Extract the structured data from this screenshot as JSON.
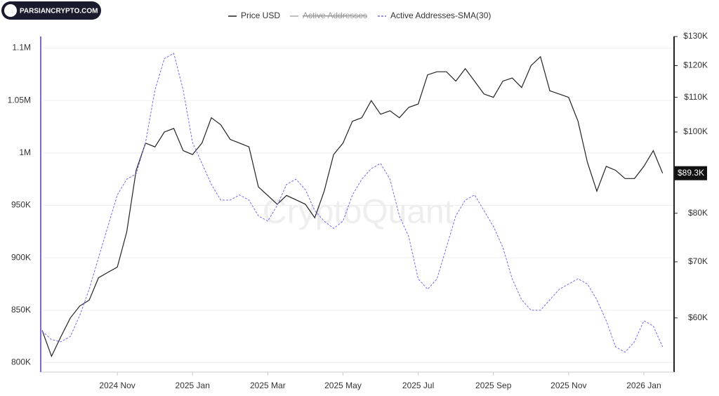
{
  "brand": "PARSIANCRYPTO.COM",
  "chart_data": {
    "type": "line",
    "watermark": "CryptoQuant",
    "categories": [
      null,
      null,
      null,
      null,
      null,
      null,
      null,
      null,
      "2024 Nov",
      null,
      null,
      null,
      null,
      null,
      null,
      null,
      "2025 Jan",
      null,
      null,
      null,
      null,
      null,
      null,
      null,
      "2025 Mar",
      null,
      null,
      null,
      null,
      null,
      null,
      null,
      "2025 May",
      null,
      null,
      null,
      null,
      null,
      null,
      null,
      "2025 Jul",
      null,
      null,
      null,
      null,
      null,
      null,
      null,
      "2025 Sep",
      null,
      null,
      null,
      null,
      null,
      null,
      null,
      "2025 Nov",
      null,
      null,
      null,
      null,
      null,
      null,
      null,
      "2026 Jan",
      null,
      null
    ],
    "series": [
      {
        "name": "Price USD",
        "color": "#222222",
        "axis": "y2",
        "dash": false,
        "visible": true,
        "values": [
          58000,
          54000,
          57000,
          60000,
          62000,
          63000,
          67000,
          68000,
          69000,
          76000,
          90000,
          97000,
          96000,
          100000,
          101000,
          95000,
          94000,
          97000,
          104000,
          102000,
          98000,
          97000,
          96000,
          86000,
          84000,
          82000,
          84000,
          83000,
          82000,
          79000,
          85000,
          94000,
          97000,
          103000,
          104000,
          109000,
          105000,
          106000,
          104000,
          107000,
          108000,
          117000,
          118000,
          118000,
          115000,
          119000,
          115000,
          111000,
          110000,
          115000,
          116000,
          113000,
          120000,
          123000,
          112000,
          111000,
          110000,
          103000,
          92000,
          85000,
          91000,
          90000,
          88000,
          88000,
          91000,
          95000,
          89300
        ],
        "value_labels": [
          null,
          null,
          null,
          null,
          null,
          null,
          null,
          null,
          null,
          null,
          null,
          null,
          null,
          null,
          null,
          null,
          null,
          null,
          null,
          null,
          null,
          null,
          null,
          null,
          null,
          null,
          null,
          null,
          null,
          null,
          null,
          null,
          null,
          null,
          null,
          null,
          null,
          null,
          null,
          null,
          null,
          null,
          null,
          null,
          null,
          null,
          null,
          null,
          null,
          null,
          null,
          null,
          null,
          null,
          null,
          null,
          null,
          null,
          null,
          null,
          null,
          null,
          null,
          null,
          null,
          null,
          "$89.3K"
        ]
      },
      {
        "name": "Active Addresses",
        "color": "#aaaaaa",
        "dash": false,
        "visible": false
      },
      {
        "name": "Active Addresses-SMA(30)",
        "color": "#7b68ee",
        "axis": "y",
        "dash": true,
        "visible": true,
        "values": [
          830000,
          822000,
          820000,
          825000,
          845000,
          870000,
          900000,
          930000,
          960000,
          975000,
          980000,
          1010000,
          1060000,
          1090000,
          1095000,
          1060000,
          1010000,
          990000,
          970000,
          955000,
          955000,
          960000,
          955000,
          940000,
          935000,
          950000,
          970000,
          975000,
          965000,
          945000,
          935000,
          928000,
          935000,
          960000,
          975000,
          985000,
          990000,
          975000,
          940000,
          920000,
          880000,
          870000,
          880000,
          910000,
          940000,
          955000,
          960000,
          945000,
          930000,
          910000,
          880000,
          860000,
          850000,
          850000,
          860000,
          870000,
          875000,
          880000,
          875000,
          860000,
          840000,
          815000,
          810000,
          820000,
          840000,
          835000,
          815000
        ]
      }
    ],
    "ylim": [
      791000,
      1111000
    ],
    "yticks": [
      {
        "value": 800000,
        "label": "800K"
      },
      {
        "value": 850000,
        "label": "850K"
      },
      {
        "value": 900000,
        "label": "900K"
      },
      {
        "value": 950000,
        "label": "950K"
      },
      {
        "value": 1000000,
        "label": "1M"
      },
      {
        "value": 1050000,
        "label": "1.05M"
      },
      {
        "value": 1100000,
        "label": "1.1M"
      }
    ],
    "y2lim": [
      51700,
      130000
    ],
    "y2scale": "log",
    "y2ticks": [
      {
        "value": 60000,
        "label": "$60K"
      },
      {
        "value": 70000,
        "label": "$70K"
      },
      {
        "value": 80000,
        "label": "$80K"
      },
      {
        "value": 100000,
        "label": "$100K"
      },
      {
        "value": 110000,
        "label": "$110K"
      },
      {
        "value": 120000,
        "label": "$120K"
      },
      {
        "value": 130000,
        "label": "$130K"
      }
    ],
    "grid": true
  }
}
